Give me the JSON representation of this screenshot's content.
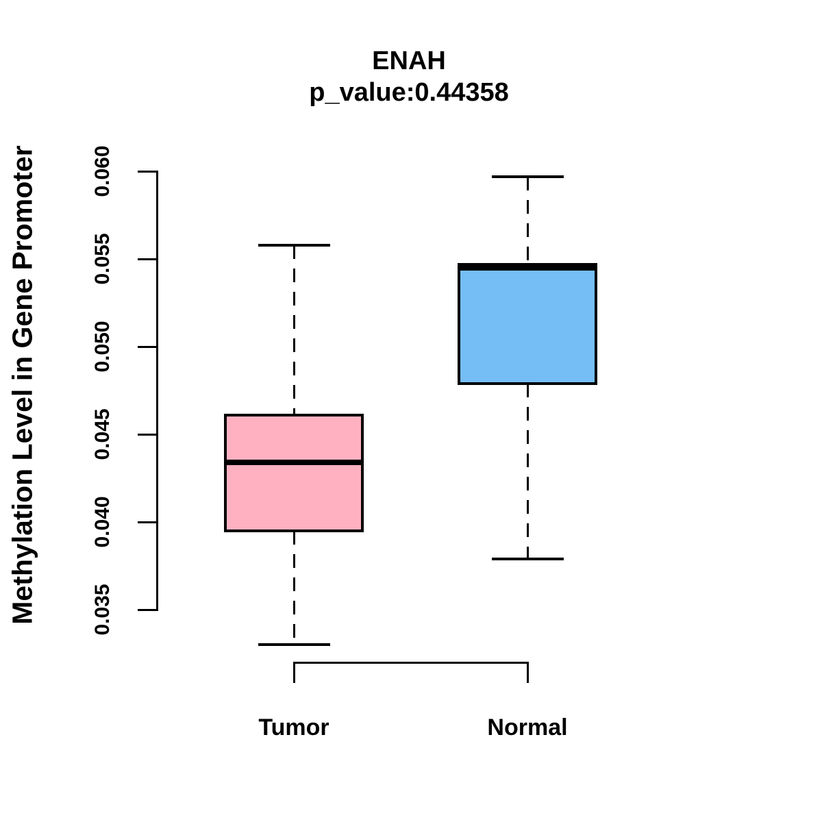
{
  "title": "ENAH",
  "subtitle": "p_value:0.44358",
  "ylabel": "Methylation Level in Gene Promoter",
  "colors": {
    "tumor_fill": "#FFB1C1",
    "normal_fill": "#75BEF5",
    "stroke": "#000000",
    "background": "#FFFFFF"
  },
  "chart_data": {
    "type": "boxplot",
    "title": "ENAH",
    "subtitle": "p_value:0.44358",
    "ylabel": "Methylation Level in Gene Promoter",
    "xlabel": "",
    "categories": [
      "Tumor",
      "Normal"
    ],
    "y_axis": {
      "ticks": [
        0.06,
        0.055,
        0.05,
        0.045,
        0.04,
        0.035
      ],
      "tick_labels": [
        "0.060",
        "0.055",
        "0.050",
        "0.045",
        "0.040",
        "0.035"
      ],
      "range": [
        0.035,
        0.06
      ]
    },
    "grid": false,
    "legend": "none",
    "series": [
      {
        "name": "Tumor",
        "min": 0.033,
        "q1": 0.0395,
        "median": 0.0434,
        "q3": 0.0461,
        "max": 0.0558,
        "color": "#FFB1C1"
      },
      {
        "name": "Normal",
        "min": 0.0379,
        "q1": 0.0479,
        "median": 0.0545,
        "q3": 0.0547,
        "max": 0.0597,
        "color": "#75BEF5"
      }
    ]
  }
}
